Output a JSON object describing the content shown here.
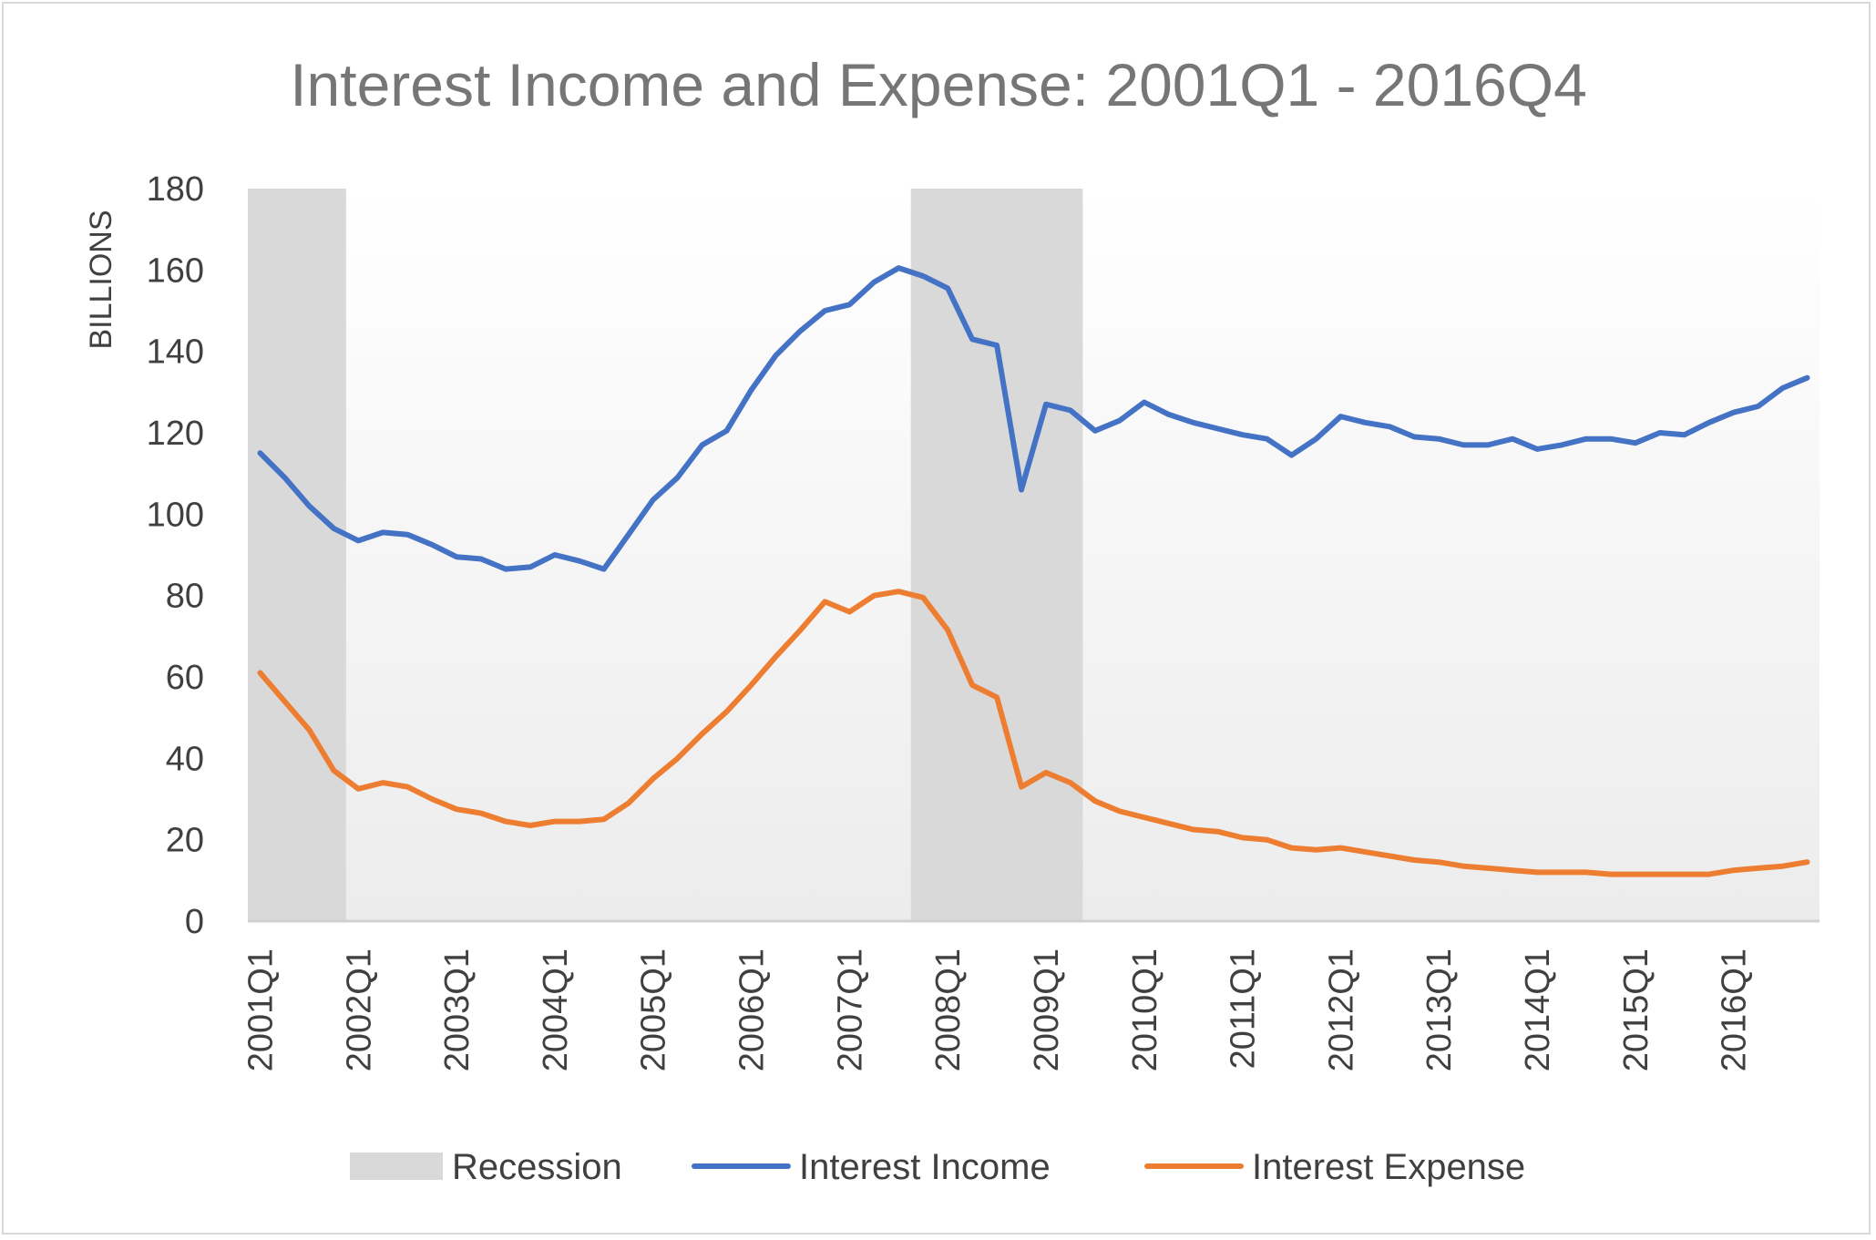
{
  "chart_data": {
    "type": "line",
    "title": "Interest Income and Expense: 2001Q1 - 2016Q4",
    "xlabel": "",
    "ylabel": "BILLIONS",
    "ylim": [
      0,
      180
    ],
    "yticks": [
      0,
      20,
      40,
      60,
      80,
      100,
      120,
      140,
      160,
      180
    ],
    "grid": false,
    "legend_position": "bottom",
    "xtick_labels": [
      "2001Q1",
      "2002Q1",
      "2003Q1",
      "2004Q1",
      "2005Q1",
      "2006Q1",
      "2007Q1",
      "2008Q1",
      "2009Q1",
      "2010Q1",
      "2011Q1",
      "2012Q1",
      "2013Q1",
      "2014Q1",
      "2015Q1",
      "2016Q1"
    ],
    "recession": {
      "name": "Recession",
      "color": "#d9d9d9",
      "periods": [
        {
          "start": "2001Q1",
          "end": "2001Q4"
        },
        {
          "start": "2007Q4",
          "end": "2009Q2"
        }
      ]
    },
    "x": [
      "2001Q1",
      "2001Q2",
      "2001Q3",
      "2001Q4",
      "2002Q1",
      "2002Q2",
      "2002Q3",
      "2002Q4",
      "2003Q1",
      "2003Q2",
      "2003Q3",
      "2003Q4",
      "2004Q1",
      "2004Q2",
      "2004Q3",
      "2004Q4",
      "2005Q1",
      "2005Q2",
      "2005Q3",
      "2005Q4",
      "2006Q1",
      "2006Q2",
      "2006Q3",
      "2006Q4",
      "2007Q1",
      "2007Q2",
      "2007Q3",
      "2007Q4",
      "2008Q1",
      "2008Q2",
      "2008Q3",
      "2008Q4",
      "2009Q1",
      "2009Q2",
      "2009Q3",
      "2009Q4",
      "2010Q1",
      "2010Q2",
      "2010Q3",
      "2010Q4",
      "2011Q1",
      "2011Q2",
      "2011Q3",
      "2011Q4",
      "2012Q1",
      "2012Q2",
      "2012Q3",
      "2012Q4",
      "2013Q1",
      "2013Q2",
      "2013Q3",
      "2013Q4",
      "2014Q1",
      "2014Q2",
      "2014Q3",
      "2014Q4",
      "2015Q1",
      "2015Q2",
      "2015Q3",
      "2015Q4",
      "2016Q1",
      "2016Q2",
      "2016Q3",
      "2016Q4"
    ],
    "series": [
      {
        "name": "Interest Income",
        "color": "#4472c4",
        "values": [
          115,
          109,
          102,
          96.5,
          93.5,
          95.5,
          95,
          92.5,
          89.5,
          89,
          86.5,
          87,
          90,
          88.5,
          86.5,
          95,
          103.5,
          109,
          117,
          120.5,
          130.5,
          139,
          145,
          150,
          151.5,
          157,
          160.5,
          158.5,
          155.5,
          143,
          141.5,
          106,
          127,
          125.5,
          120.5,
          123,
          127.5,
          124.5,
          122.5,
          121,
          119.5,
          118.5,
          114.5,
          118.5,
          124,
          122.5,
          121.5,
          119,
          118.5,
          117,
          117,
          118.5,
          116,
          117,
          118.5,
          118.5,
          117.5,
          120,
          119.5,
          122.5,
          125,
          126.5,
          131,
          133.5
        ]
      },
      {
        "name": "Interest Expense",
        "color": "#ed7d31",
        "values": [
          61,
          54,
          47,
          37,
          32.5,
          34,
          33,
          30,
          27.5,
          26.5,
          24.5,
          23.5,
          24.5,
          24.5,
          25,
          29,
          35,
          40,
          46,
          51.5,
          58,
          65,
          71.5,
          78.5,
          76,
          80,
          81,
          79.5,
          71.5,
          58,
          55,
          33,
          36.5,
          34,
          29.5,
          27,
          25.5,
          24,
          22.5,
          22,
          20.5,
          20,
          18,
          17.5,
          18,
          17,
          16,
          15,
          14.5,
          13.5,
          13,
          12.5,
          12,
          12,
          12,
          11.5,
          11.5,
          11.5,
          11.5,
          11.5,
          12.5,
          13,
          13.5,
          14.5
        ]
      }
    ]
  }
}
